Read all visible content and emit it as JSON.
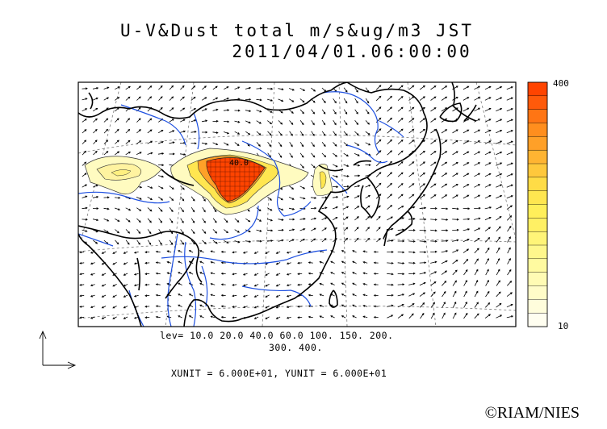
{
  "title": {
    "line1": "U-V&Dust total m/s&ug/m3 JST",
    "line2": "2011/04/01.06:00:00"
  },
  "levels_line1": "lev= 10.0 20.0 40.0 60.0 100. 150. 200.",
  "levels_line2": "300. 400.",
  "units_line": "XUNIT = 6.000E+01, YUNIT = 6.000E+01",
  "colorbar": {
    "max_label": "400",
    "min_label": "10",
    "colors": [
      "#ff4400",
      "#ff5a0a",
      "#ff7514",
      "#ff8e1e",
      "#ffa028",
      "#ffb432",
      "#ffc83c",
      "#ffdc46",
      "#ffe650",
      "#ffef5a",
      "#fff064",
      "#fff478",
      "#fff78c",
      "#fffaa0",
      "#fffbb4",
      "#fffcc8",
      "#fffddc",
      "#fffef0"
    ]
  },
  "contour_label": "40.0",
  "credit": "©RIAM/NIES",
  "colors": {
    "coast": "#000000",
    "river": "#1e50e0",
    "grid": "#7a7a7a",
    "dust_high": "#ff4400",
    "dust_low": "#fffbc0"
  }
}
